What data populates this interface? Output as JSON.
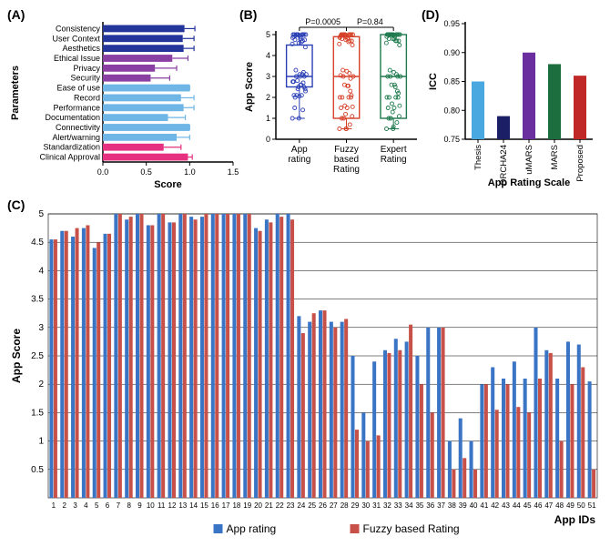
{
  "panelA": {
    "label": "(A)",
    "yAxisTitle": "Parameters",
    "xAxisTitle": "Score",
    "xlim": [
      0,
      1.5
    ],
    "ticks": [
      0.0,
      0.5,
      1.0,
      1.5
    ],
    "axis_color": "#000",
    "grid": false,
    "label_fontsize": 10,
    "tick_fontsize": 9,
    "items": [
      {
        "label": "Consistency",
        "value": 0.94,
        "err": 0.12,
        "color": "#23349b"
      },
      {
        "label": "User Context",
        "value": 0.92,
        "err": 0.13,
        "color": "#23349b"
      },
      {
        "label": "Aesthetics",
        "value": 0.93,
        "err": 0.12,
        "color": "#23349b"
      },
      {
        "label": "Ethical Issue",
        "value": 0.8,
        "err": 0.18,
        "color": "#8a3fa3"
      },
      {
        "label": "Privacy",
        "value": 0.6,
        "err": 0.25,
        "color": "#8a3fa3"
      },
      {
        "label": "Security",
        "value": 0.55,
        "err": 0.22,
        "color": "#8a3fa3"
      },
      {
        "label": "Ease of use",
        "value": 1.0,
        "err": 0.0,
        "color": "#6fb6e6"
      },
      {
        "label": "Record",
        "value": 0.9,
        "err": 0.15,
        "color": "#6fb6e6"
      },
      {
        "label": "Performance",
        "value": 0.93,
        "err": 0.12,
        "color": "#6fb6e6"
      },
      {
        "label": "Documentation",
        "value": 0.75,
        "err": 0.2,
        "color": "#6fb6e6"
      },
      {
        "label": "Connectivity",
        "value": 1.0,
        "err": 0.0,
        "color": "#6fb6e6"
      },
      {
        "label": "Alert/warning",
        "value": 0.85,
        "err": 0.15,
        "color": "#6fb6e6"
      },
      {
        "label": "Standardization",
        "value": 0.7,
        "err": 0.2,
        "color": "#e5317f"
      },
      {
        "label": "Clinical Approval",
        "value": 0.98,
        "err": 0.05,
        "color": "#e5317f"
      }
    ]
  },
  "panelB": {
    "label": "(B)",
    "yAxisTitle": "App Score",
    "ylim": [
      0,
      5
    ],
    "ticks": [
      0,
      1,
      2,
      3,
      4,
      5
    ],
    "annotations": [
      {
        "text": "P=0.0005",
        "between": [
          0,
          1
        ]
      },
      {
        "text": "P=0.84",
        "between": [
          1,
          2
        ]
      }
    ],
    "groups": [
      {
        "label": "App rating",
        "color": "#2b3fb5",
        "median": 3.0,
        "q1": 2.5,
        "q3": 4.5,
        "whisk_lo": 1.0,
        "whisk_hi": 5.0,
        "points": [
          4.55,
          4.7,
          4.6,
          4.75,
          4.4,
          4.65,
          5,
          4.9,
          5,
          4.8,
          5,
          4.85,
          5,
          4.95,
          4.95,
          5,
          5,
          5,
          5,
          4.75,
          4.9,
          5,
          5,
          3.2,
          3.1,
          3.3,
          3.1,
          3.1,
          2.5,
          1.5,
          2.4,
          2.6,
          2.8,
          2.75,
          2.5,
          3,
          3,
          1,
          1.4,
          1,
          2,
          2.3,
          2.1,
          2.4,
          2.1,
          3,
          2.6,
          2.1,
          2.75,
          2.7,
          2.05
        ]
      },
      {
        "label": "Fuzzy based Rating",
        "color": "#d64028",
        "median": 3.0,
        "q1": 1.0,
        "q3": 4.9,
        "whisk_lo": 0.5,
        "whisk_hi": 5.0,
        "points": [
          4.55,
          4.7,
          4.75,
          4.8,
          4.5,
          4.65,
          5,
          4.95,
          5,
          4.8,
          5,
          4.85,
          5,
          4.9,
          5,
          5,
          5,
          5,
          5,
          4.7,
          4.85,
          4.95,
          4.9,
          2.9,
          3.25,
          3.3,
          3,
          3.15,
          1.2,
          1,
          1.1,
          2.55,
          2.6,
          3.05,
          2,
          1.5,
          3,
          0.5,
          0.7,
          0.5,
          2,
          1.55,
          2,
          1.6,
          1.5,
          2.1,
          2.55,
          1,
          2,
          2.3,
          0.5
        ]
      },
      {
        "label": "Expert Rating",
        "color": "#1f7a4d",
        "median": 3.0,
        "q1": 1.0,
        "q3": 5.0,
        "whisk_lo": 0.5,
        "whisk_hi": 5.0,
        "points": [
          4.6,
          4.7,
          4.8,
          4.8,
          4.5,
          4.7,
          5,
          5,
          5,
          4.8,
          5,
          4.9,
          5,
          5,
          5,
          5,
          5,
          5,
          5,
          4.7,
          4.9,
          5,
          5,
          3,
          3.2,
          3.3,
          3,
          3.1,
          1.3,
          1,
          1.1,
          2.5,
          2.6,
          3,
          2,
          1.5,
          3,
          0.5,
          0.8,
          0.5,
          2,
          1.6,
          2,
          1.7,
          1.5,
          2.2,
          2.6,
          1,
          2,
          2.3,
          0.6
        ]
      }
    ]
  },
  "panelD": {
    "label": "(D)",
    "yAxisTitle": "ICC",
    "xAxisTitle": "App Rating Scale",
    "ylim": [
      0.75,
      0.95
    ],
    "ticks": [
      0.75,
      0.8,
      0.85,
      0.9,
      0.95
    ],
    "bars": [
      {
        "label": "Thesis",
        "value": 0.85,
        "color": "#4aa8e0"
      },
      {
        "label": "ORCHA24",
        "value": 0.79,
        "color": "#1b1f66"
      },
      {
        "label": "uMARS",
        "value": 0.9,
        "color": "#6a2e9e"
      },
      {
        "label": "MARS",
        "value": 0.88,
        "color": "#1c6e3e"
      },
      {
        "label": "Proposed",
        "value": 0.86,
        "color": "#c02828"
      }
    ]
  },
  "panelC": {
    "label": "(C)",
    "yAxisTitle": "App Score",
    "xAxisTitle": "App IDs",
    "ylim": [
      0,
      5
    ],
    "yticks": [
      0.5,
      1,
      1.5,
      2,
      2.5,
      3,
      3.5,
      4,
      4.5,
      5
    ],
    "series": [
      {
        "label": "App rating",
        "color": "#3a74c5"
      },
      {
        "label": "Fuzzy based Rating",
        "color": "#c75048"
      }
    ],
    "ids": [
      1,
      2,
      3,
      4,
      5,
      6,
      7,
      8,
      9,
      10,
      11,
      12,
      13,
      14,
      15,
      16,
      17,
      18,
      19,
      20,
      21,
      22,
      23,
      24,
      25,
      26,
      27,
      28,
      29,
      30,
      31,
      32,
      33,
      34,
      35,
      36,
      37,
      38,
      39,
      40,
      41,
      42,
      43,
      44,
      45,
      46,
      47,
      48,
      49,
      50,
      51
    ],
    "app": [
      4.55,
      4.7,
      4.6,
      4.75,
      4.4,
      4.65,
      5,
      4.9,
      5,
      4.8,
      5,
      4.85,
      5,
      4.95,
      4.95,
      5,
      5,
      5,
      5,
      4.75,
      4.9,
      5,
      5,
      3.2,
      3.1,
      3.3,
      3.1,
      3.1,
      2.5,
      1.5,
      2.4,
      2.6,
      2.8,
      2.75,
      2.5,
      3,
      3,
      1.0,
      1.4,
      1.0,
      2.0,
      2.3,
      2.1,
      2.4,
      2.1,
      3.0,
      2.6,
      2.1,
      2.75,
      2.7,
      2.05
    ],
    "fuzzy": [
      4.55,
      4.7,
      4.75,
      4.8,
      4.5,
      4.65,
      5,
      4.95,
      5,
      4.8,
      5,
      4.85,
      5,
      4.9,
      5,
      5,
      5,
      5,
      5,
      4.7,
      4.85,
      4.95,
      4.9,
      2.9,
      3.25,
      3.3,
      3.0,
      3.15,
      1.2,
      1.0,
      1.1,
      2.55,
      2.6,
      3.05,
      2.0,
      1.5,
      3.0,
      0.5,
      0.7,
      0.5,
      2.0,
      1.55,
      2.0,
      1.6,
      1.5,
      2.1,
      2.55,
      1.0,
      2.0,
      2.3,
      0.5
    ]
  }
}
